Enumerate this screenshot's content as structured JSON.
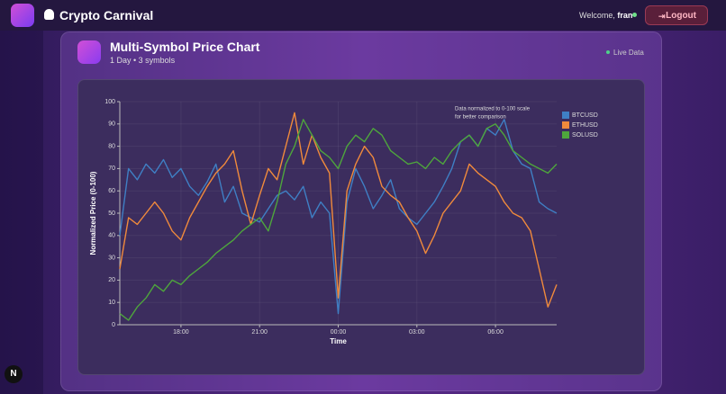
{
  "header": {
    "brand": "Crypto Carnival",
    "welcome": "Welcome,",
    "user": "fran",
    "logout": "Logout"
  },
  "card": {
    "title": "Multi-Symbol Price Chart",
    "subtitle": "1 Day • 3 symbols",
    "status": "Live Data"
  },
  "chart_data": {
    "type": "line",
    "x_label": "Time",
    "y_label": "Normalized Price (0-100)",
    "annotations": [
      "Data normalized to 0-100 scale",
      "for better comparison"
    ],
    "categories": [
      null,
      null,
      null,
      null,
      null,
      null,
      null,
      "18:00",
      null,
      null,
      null,
      null,
      null,
      null,
      null,
      null,
      "21:00",
      null,
      null,
      null,
      null,
      null,
      null,
      null,
      null,
      "00:00",
      null,
      null,
      null,
      null,
      null,
      null,
      null,
      null,
      "03:00",
      null,
      null,
      null,
      null,
      null,
      null,
      null,
      null,
      "06:00",
      null,
      null,
      null,
      null,
      null,
      null,
      null
    ],
    "series": [
      {
        "name": "BTCUSD",
        "color": "#3f7fc4",
        "values": [
          40,
          70,
          65,
          72,
          68,
          74,
          66,
          70,
          62,
          58,
          64,
          72,
          55,
          62,
          50,
          48,
          46,
          52,
          58,
          60,
          56,
          62,
          48,
          55,
          50,
          5,
          55,
          70,
          62,
          52,
          58,
          65,
          52,
          48,
          45,
          50,
          55,
          62,
          70,
          82,
          85,
          80,
          88,
          85,
          92,
          78,
          72,
          70,
          55,
          52,
          50
        ]
      },
      {
        "name": "ETHUSD",
        "color": "#f08a3c",
        "values": [
          25,
          48,
          45,
          50,
          55,
          50,
          42,
          38,
          48,
          55,
          62,
          68,
          72,
          78,
          60,
          45,
          58,
          70,
          65,
          80,
          95,
          72,
          85,
          75,
          68,
          12,
          60,
          72,
          80,
          75,
          62,
          58,
          55,
          48,
          42,
          32,
          40,
          50,
          55,
          60,
          72,
          68,
          65,
          62,
          55,
          50,
          48,
          42,
          25,
          8,
          18
        ]
      },
      {
        "name": "SOLUSD",
        "color": "#4ea63c",
        "values": [
          5,
          2,
          8,
          12,
          18,
          15,
          20,
          18,
          22,
          25,
          28,
          32,
          35,
          38,
          42,
          45,
          48,
          42,
          55,
          72,
          80,
          92,
          85,
          78,
          75,
          70,
          80,
          85,
          82,
          88,
          85,
          78,
          75,
          72,
          73,
          70,
          75,
          72,
          78,
          82,
          85,
          80,
          88,
          90,
          85,
          78,
          75,
          72,
          70,
          68,
          72
        ]
      }
    ],
    "ylim": [
      0,
      100
    ],
    "yticks": [
      0,
      10,
      20,
      30,
      40,
      50,
      60,
      70,
      80,
      90,
      100
    ],
    "grid": true,
    "legend": "top-right"
  }
}
